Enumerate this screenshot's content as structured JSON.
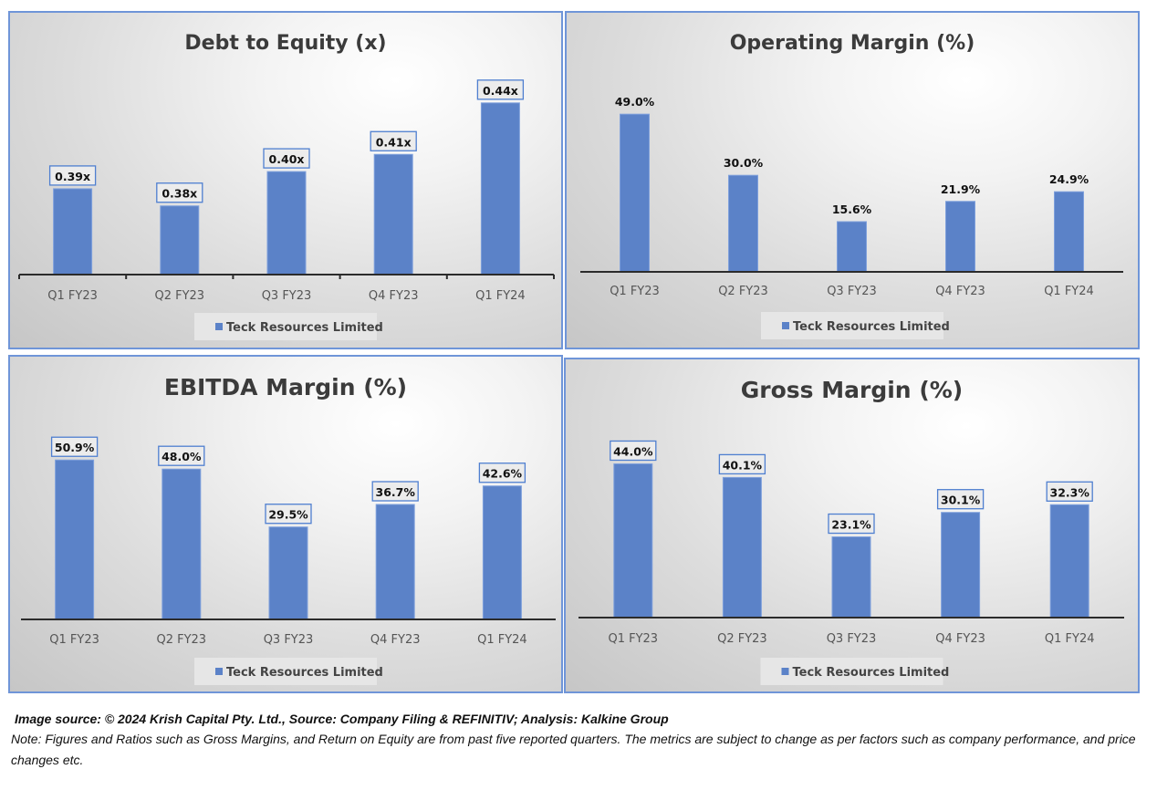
{
  "chart_data": [
    {
      "type": "bar",
      "title": "Debt to Equity (x)",
      "categories": [
        "Q1 FY23",
        "Q2 FY23",
        "Q3 FY23",
        "Q4 FY23",
        "Q1 FY24"
      ],
      "series": [
        {
          "name": "Teck Resources Limited",
          "values": [
            0.39,
            0.38,
            0.4,
            0.41,
            0.44
          ]
        }
      ],
      "data_labels": [
        "0.39x",
        "0.38x",
        "0.40x",
        "0.41x",
        "0.44x"
      ],
      "data_label_boxed": true,
      "ylim": [
        0.34,
        0.45
      ],
      "xlabel": "",
      "ylabel": "",
      "grid": false,
      "axis_ticks": true,
      "legend": "bottom",
      "color": "#5b82c8"
    },
    {
      "type": "bar",
      "title": "Operating Margin (%)",
      "categories": [
        "Q1 FY23",
        "Q2 FY23",
        "Q3 FY23",
        "Q4 FY23",
        "Q1 FY24"
      ],
      "series": [
        {
          "name": "Teck Resources Limited",
          "values": [
            49.0,
            30.0,
            15.6,
            21.9,
            24.9
          ]
        }
      ],
      "data_labels": [
        "49.0%",
        "30.0%",
        "15.6%",
        "21.9%",
        "24.9%"
      ],
      "data_label_boxed": false,
      "ylim": [
        0,
        55
      ],
      "xlabel": "",
      "ylabel": "",
      "grid": false,
      "axis_ticks": false,
      "legend": "bottom",
      "color": "#5b82c8"
    },
    {
      "type": "bar",
      "title": "EBITDA Margin (%)",
      "categories": [
        "Q1 FY23",
        "Q2 FY23",
        "Q3 FY23",
        "Q4 FY23",
        "Q1 FY24"
      ],
      "series": [
        {
          "name": "Teck Resources Limited",
          "values": [
            50.9,
            48.0,
            29.5,
            36.7,
            42.6
          ]
        }
      ],
      "data_labels": [
        "50.9%",
        "48.0%",
        "29.5%",
        "36.7%",
        "42.6%"
      ],
      "data_label_boxed": true,
      "ylim": [
        0,
        60
      ],
      "xlabel": "",
      "ylabel": "",
      "grid": false,
      "axis_ticks": false,
      "legend": "bottom",
      "color": "#5b82c8"
    },
    {
      "type": "bar",
      "title": "Gross Margin (%)",
      "categories": [
        "Q1 FY23",
        "Q2 FY23",
        "Q3 FY23",
        "Q4 FY23",
        "Q1 FY24"
      ],
      "series": [
        {
          "name": "Teck Resources Limited",
          "values": [
            44.0,
            40.1,
            23.1,
            30.1,
            32.3
          ]
        }
      ],
      "data_labels": [
        "44.0%",
        "40.1%",
        "23.1%",
        "30.1%",
        "32.3%"
      ],
      "data_label_boxed": true,
      "ylim": [
        0,
        53
      ],
      "xlabel": "",
      "ylabel": "",
      "grid": false,
      "axis_ticks": false,
      "legend": "bottom",
      "color": "#5b82c8"
    }
  ],
  "footer": {
    "source": "Image source: © 2024 Krish Capital Pty. Ltd., Source: Company Filing & REFINITIV; Analysis: Kalkine Group",
    "note": "Note: Figures and Ratios such as  Gross Margins, and Return on Equity are from past  five reported  quarters. The metrics are subject to change as per factors such as company performance, and price changes etc."
  }
}
